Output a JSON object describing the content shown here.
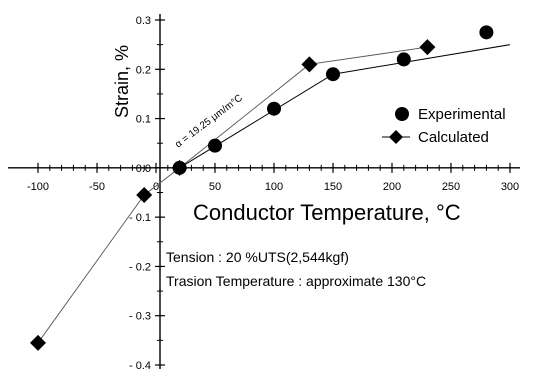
{
  "chart_data": {
    "type": "line",
    "xlabel": "Conductor Temperature, °C",
    "ylabel": "Strain, %",
    "xlim": [
      -100,
      300
    ],
    "ylim": [
      -0.4,
      0.3
    ],
    "x_ticks": [
      -100,
      -50,
      0,
      50,
      100,
      150,
      200,
      250,
      300
    ],
    "y_ticks": [
      -0.4,
      -0.3,
      -0.2,
      -0.1,
      0.0,
      0.1,
      0.2,
      0.3
    ],
    "x_tick_labels": [
      "-100",
      "-50",
      "0",
      "50",
      "100",
      "150",
      "200",
      "250",
      "300"
    ],
    "y_tick_labels": [
      "- 0.4",
      "- 0.3",
      "- 0.2",
      "- 0.1",
      "0.0",
      "0.1",
      "0.2",
      "0.3"
    ],
    "grid": false,
    "legend_position": "right",
    "series": [
      {
        "name": "Experimental",
        "marker": "circle",
        "color": "#000000",
        "x": [
          20,
          50,
          100,
          150,
          210,
          280
        ],
        "y": [
          0.0,
          0.045,
          0.12,
          0.19,
          0.22,
          0.275
        ]
      },
      {
        "name": "Calculated",
        "marker": "diamond",
        "color": "#000000",
        "x": [
          -100,
          -10,
          20,
          130,
          230
        ],
        "y": [
          -0.355,
          -0.055,
          0.0,
          0.21,
          0.245
        ]
      }
    ],
    "fit_lines": [
      {
        "x": [
          20,
          150,
          300
        ],
        "y": [
          0.0,
          0.19,
          0.25
        ]
      }
    ],
    "annotations": {
      "slope": "α = 19.25 μm/m°C",
      "tension": "Tension : 20 %UTS(2,544kgf)",
      "transition": "Trasion Temperature : approximate 130°C"
    }
  }
}
